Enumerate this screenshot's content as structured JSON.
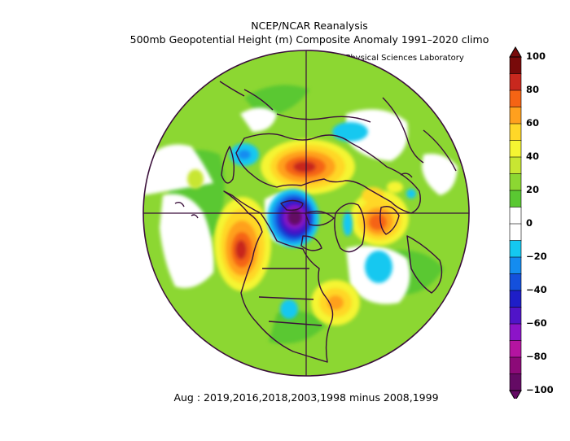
{
  "header": {
    "title": "NCEP/NCAR Reanalysis",
    "subtitle": "500mb Geopotential Height (m) Composite Anomaly 1991–2020 climo",
    "credit": "NOAA Physical Sciences Laboratory"
  },
  "caption": "Aug : 2019,2016,2018,2003,1998 minus 2008,1999",
  "map": {
    "projection": "north-polar-stereographic",
    "variable": "500mb geopotential height anomaly",
    "units": "m",
    "features": [
      {
        "kind": "negative-center",
        "region": "north-central Canada / Arctic Archipelago",
        "peak_m": -100
      },
      {
        "kind": "positive-center",
        "region": "Siberia north of Arctic coast",
        "peak_m": 80
      },
      {
        "kind": "positive-center",
        "region": "Alaska / Bering Sea",
        "peak_m": 90
      },
      {
        "kind": "positive-center",
        "region": "Scandinavia / Barents Sea",
        "peak_m": 80
      },
      {
        "kind": "positive-center",
        "region": "Atlantic off eastern North America",
        "peak_m": 50
      },
      {
        "kind": "negative-center",
        "region": "east of Greenland / North Atlantic",
        "peak_m": -20
      },
      {
        "kind": "negative-center",
        "region": "northeast Asia",
        "peak_m": -20
      }
    ]
  },
  "colorbar": {
    "labels": [
      "100",
      "80",
      "60",
      "40",
      "20",
      "0",
      "−20",
      "−40",
      "−60",
      "−80",
      "−100"
    ],
    "colors": [
      "#780a0a",
      "#c8281e",
      "#f56414",
      "#ffa01e",
      "#ffd728",
      "#f5f532",
      "#c8e632",
      "#8cd732",
      "#5ac832",
      "#ffffff",
      "#ffffff",
      "#14c8f0",
      "#148cf0",
      "#1450dc",
      "#1e1ec8",
      "#5014c8",
      "#8c14c8",
      "#b414a0",
      "#8c0a78",
      "#640a64"
    ]
  }
}
